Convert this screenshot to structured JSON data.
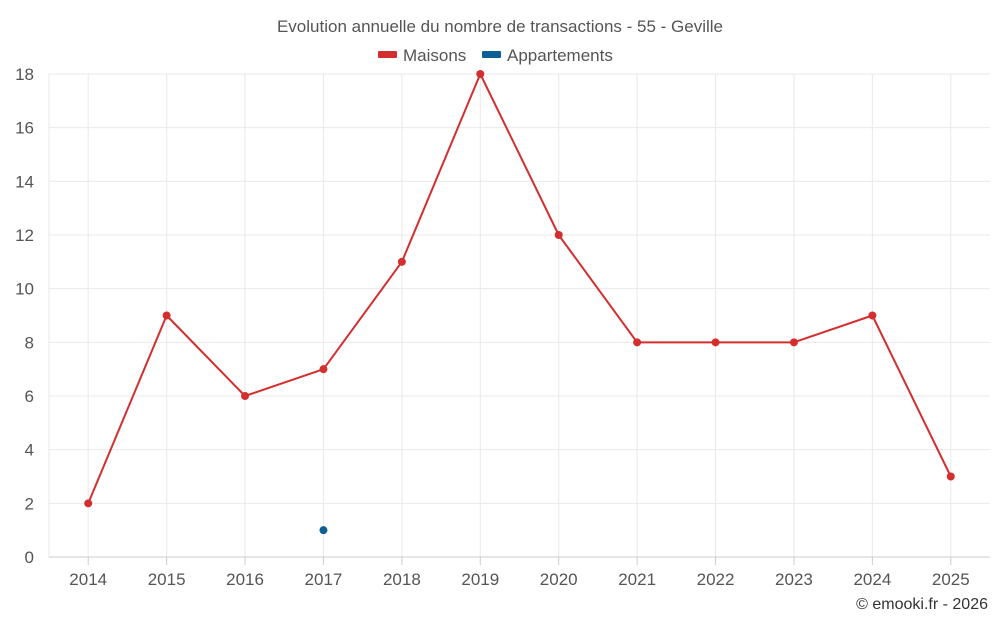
{
  "chart_data": {
    "type": "line",
    "title": "Evolution annuelle du nombre de transactions - 55 - Geville",
    "categories": [
      "2014",
      "2015",
      "2016",
      "2017",
      "2018",
      "2019",
      "2020",
      "2021",
      "2022",
      "2023",
      "2024",
      "2025"
    ],
    "series": [
      {
        "name": "Maisons",
        "color": "#d32f2f",
        "values": [
          2,
          9,
          6,
          7,
          11,
          18,
          12,
          8,
          8,
          8,
          9,
          3
        ]
      },
      {
        "name": "Appartements",
        "color": "#0b5e96",
        "values": [
          null,
          null,
          null,
          1,
          null,
          null,
          null,
          null,
          null,
          null,
          null,
          null
        ]
      }
    ],
    "ylim": [
      0,
      18
    ],
    "yticks": [
      0,
      2,
      4,
      6,
      8,
      10,
      12,
      14,
      16,
      18
    ],
    "xlabel": "",
    "ylabel": "",
    "grid": true,
    "legend": "top-center"
  },
  "credit": "© emooki.fr - 2026"
}
